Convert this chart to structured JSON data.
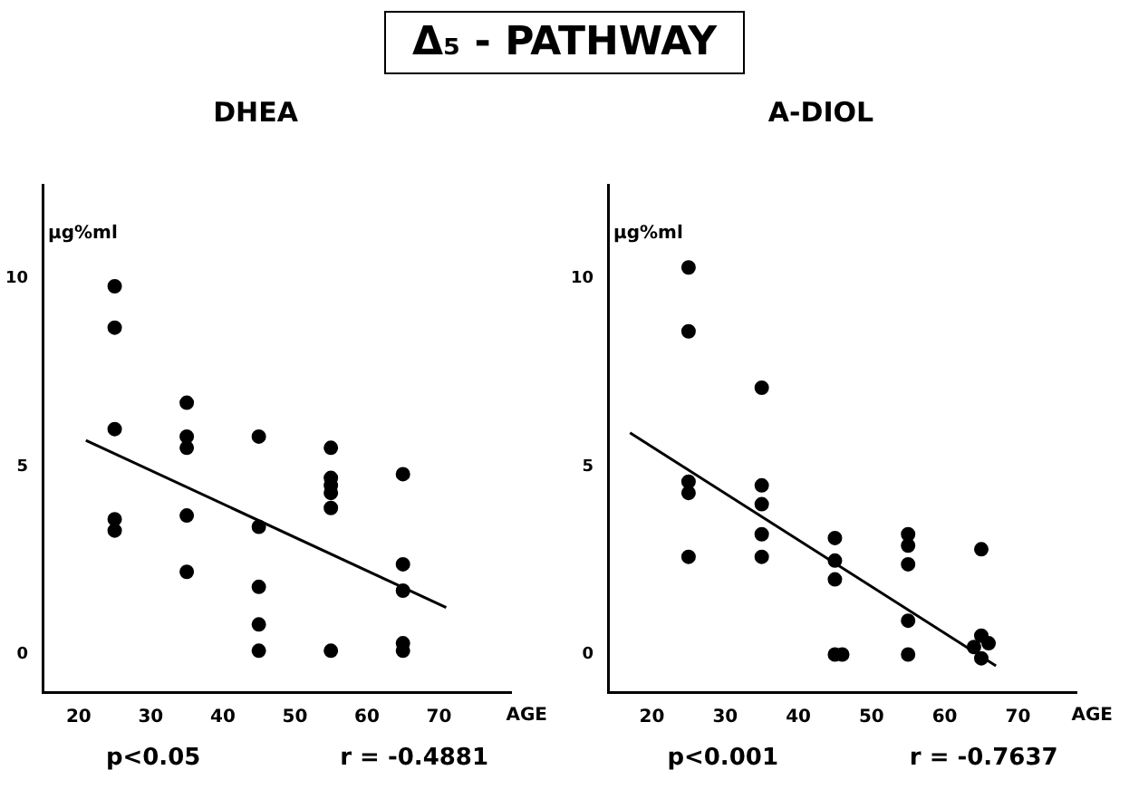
{
  "chart_data": [
    {
      "type": "other",
      "title": "Δ₅ - PATHWAY"
    },
    {
      "type": "scatter",
      "title": "DHEA",
      "xlabel": "AGE",
      "ylabel": "µg%ml",
      "xlim": [
        15,
        80
      ],
      "ylim": [
        -1,
        12.5
      ],
      "xticks": [
        20,
        30,
        40,
        50,
        60,
        70
      ],
      "yticks": [
        0,
        5,
        10
      ],
      "grid": false,
      "legend": false,
      "series": [
        {
          "color": "#000000",
          "marker": "circle",
          "x": [
            25,
            25,
            25,
            25,
            25,
            35,
            35,
            35,
            35,
            35,
            45,
            45,
            45,
            45,
            45,
            55,
            55,
            55,
            55,
            55,
            55,
            65,
            65,
            65,
            65,
            65
          ],
          "values": [
            9.8,
            8.7,
            6.0,
            3.6,
            3.3,
            6.7,
            5.8,
            5.5,
            3.7,
            2.2,
            5.8,
            3.4,
            1.8,
            0.8,
            0.1,
            5.5,
            4.7,
            4.5,
            4.3,
            3.9,
            0.1,
            4.8,
            2.4,
            1.7,
            0.3,
            0.1
          ]
        },
        {
          "type": "line",
          "color": "#000000",
          "marker": "none",
          "x": [
            21,
            71
          ],
          "values": [
            5.7,
            1.25
          ]
        }
      ],
      "annotations": [
        "p<0.05",
        "r = -0.4881"
      ]
    },
    {
      "type": "scatter",
      "title": "A-DIOL",
      "xlabel": "AGE",
      "ylabel": "µg%ml",
      "xlim": [
        14,
        78
      ],
      "ylim": [
        -1,
        12.5
      ],
      "xticks": [
        20,
        30,
        40,
        50,
        60,
        70
      ],
      "yticks": [
        0,
        5,
        10
      ],
      "grid": false,
      "legend": false,
      "series": [
        {
          "color": "#000000",
          "marker": "circle",
          "x": [
            25,
            25,
            25,
            25,
            25,
            35,
            35,
            35,
            35,
            35,
            45,
            45,
            45,
            45,
            46,
            55,
            55,
            55,
            55,
            55,
            65,
            65,
            66,
            64,
            65
          ],
          "values": [
            10.3,
            8.6,
            4.6,
            4.3,
            2.6,
            7.1,
            4.5,
            4.0,
            3.2,
            2.6,
            3.1,
            2.5,
            2.0,
            0.0,
            0.0,
            3.2,
            2.9,
            2.4,
            0.9,
            0.0,
            2.8,
            0.5,
            0.3,
            0.2,
            -0.1
          ]
        },
        {
          "type": "line",
          "color": "#000000",
          "marker": "none",
          "x": [
            17,
            67
          ],
          "values": [
            5.9,
            -0.3
          ]
        }
      ],
      "annotations": [
        "p<0.001",
        "r = -0.7637"
      ]
    }
  ]
}
